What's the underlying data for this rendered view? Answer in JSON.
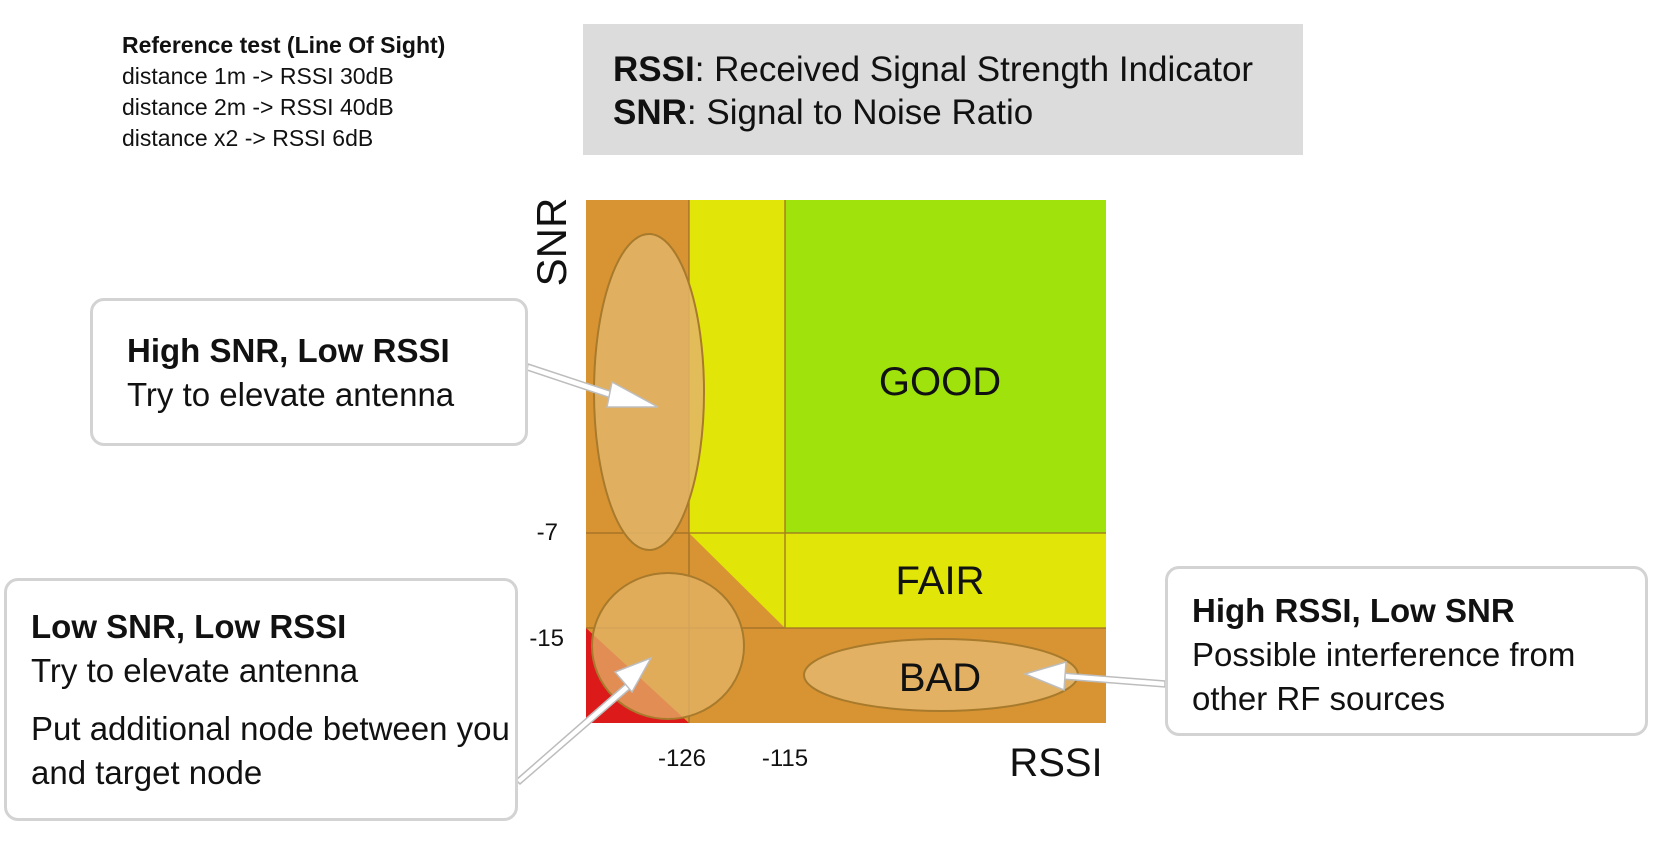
{
  "reference": {
    "title": "Reference test (Line Of Sight)",
    "lines": [
      "distance 1m ->  RSSI 30dB",
      "distance 2m -> RSSI 40dB",
      "distance x2 ->  RSSI 6dB"
    ]
  },
  "legend": {
    "rssi_abbr": "RSSI",
    "rssi_def": ": Received Signal Strength Indicator",
    "snr_abbr": "SNR",
    "snr_def": ":  Signal to Noise Ratio"
  },
  "axes": {
    "y_label": "SNR",
    "x_label": "RSSI",
    "y_ticks": [
      "-7",
      "-15"
    ],
    "x_ticks": [
      "-126",
      "-115"
    ]
  },
  "zones": {
    "good": "GOOD",
    "fair": "FAIR",
    "bad": "BAD"
  },
  "colors": {
    "good": "#9fe20c",
    "fair": "#e1e608",
    "bad": "#d89433",
    "critical": "#dd1a1a",
    "highlight": "#e3b468",
    "legend_bg": "#dcdcdc",
    "callout_border": "#d3d3d3"
  },
  "callouts": {
    "high_snr_low_rssi": {
      "title": "High SNR, Low RSSI",
      "text": "Try to elevate antenna"
    },
    "low_snr_low_rssi": {
      "title": "Low SNR, Low RSSI",
      "text1": "Try to elevate antenna",
      "text2": "Put additional node between you and target node"
    },
    "high_rssi_low_snr": {
      "title": "High RSSI, Low SNR",
      "text": "Possible interference from other RF sources"
    }
  }
}
